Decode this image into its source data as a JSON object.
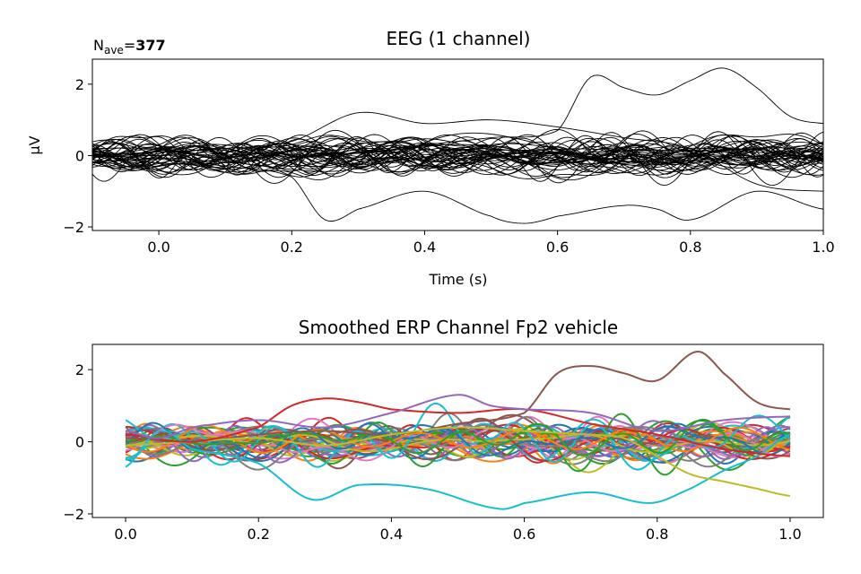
{
  "chart_data": [
    {
      "type": "line",
      "title": "EEG (1 channel)",
      "annotation_prefix": "N",
      "annotation_sub": "ave",
      "annotation_suffix": "=",
      "annotation_value": "377",
      "xlabel": "Time (s)",
      "ylabel": "µV",
      "xlim": [
        -0.1,
        1.0
      ],
      "ylim": [
        -2.1,
        2.7
      ],
      "xticks": [
        0.0,
        0.2,
        0.4,
        0.6,
        0.8,
        1.0
      ],
      "xtick_labels": [
        "0.0",
        "0.2",
        "0.4",
        "0.6",
        "0.8",
        "1.0"
      ],
      "yticks": [
        -2,
        0,
        2
      ],
      "ytick_labels": [
        "−2",
        "0",
        "2"
      ],
      "grid": false,
      "line_color": "#000000",
      "series_count": 48,
      "extreme_series": [
        {
          "x": [
            -0.1,
            0.0,
            0.1,
            0.2,
            0.3,
            0.4,
            0.5,
            0.6,
            0.65,
            0.7,
            0.75,
            0.8,
            0.85,
            0.9,
            0.95,
            1.0
          ],
          "y": [
            0.1,
            0.0,
            0.2,
            -0.3,
            0.1,
            0.3,
            0.5,
            0.7,
            2.2,
            1.9,
            1.7,
            2.1,
            2.45,
            1.9,
            1.1,
            0.9
          ]
        },
        {
          "x": [
            -0.1,
            0.0,
            0.1,
            0.2,
            0.25,
            0.3,
            0.4,
            0.5,
            0.55,
            0.6,
            0.7,
            0.75,
            0.8,
            0.9,
            1.0
          ],
          "y": [
            0.0,
            -0.1,
            -0.3,
            -0.6,
            -1.8,
            -1.5,
            -1.0,
            -1.7,
            -1.9,
            -1.7,
            -1.4,
            -1.5,
            -1.8,
            -1.0,
            -1.5
          ]
        },
        {
          "x": [
            -0.1,
            0.0,
            0.1,
            0.2,
            0.3,
            0.4,
            0.5,
            0.6,
            0.7,
            0.8,
            0.9,
            1.0
          ],
          "y": [
            0.0,
            0.1,
            0.2,
            0.4,
            1.2,
            0.9,
            1.0,
            0.8,
            0.5,
            0.2,
            -0.8,
            -1.0
          ]
        }
      ]
    },
    {
      "type": "line",
      "title": "Smoothed ERP Channel Fp2 vehicle",
      "xlabel": "",
      "ylabel": "",
      "xlim": [
        -0.05,
        1.05
      ],
      "ylim": [
        -2.1,
        2.7
      ],
      "xticks": [
        0.0,
        0.2,
        0.4,
        0.6,
        0.8,
        1.0
      ],
      "xtick_labels": [
        "0.0",
        "0.2",
        "0.4",
        "0.6",
        "0.8",
        "1.0"
      ],
      "yticks": [
        -2,
        0,
        2
      ],
      "ytick_labels": [
        "−2",
        "0",
        "2"
      ],
      "grid": false,
      "colors": [
        "#1f77b4",
        "#ff7f0e",
        "#2ca02c",
        "#d62728",
        "#9467bd",
        "#8c564b",
        "#e377c2",
        "#7f7f7f",
        "#bcbd22",
        "#17becf"
      ],
      "series_count": 48,
      "extreme_series": [
        {
          "color": "#8c564b",
          "x": [
            0.0,
            0.1,
            0.2,
            0.3,
            0.4,
            0.5,
            0.6,
            0.65,
            0.7,
            0.75,
            0.8,
            0.86,
            0.9,
            0.95,
            1.0
          ],
          "y": [
            0.1,
            0.0,
            0.2,
            0.3,
            0.2,
            0.5,
            0.8,
            1.9,
            2.1,
            1.9,
            1.7,
            2.5,
            1.9,
            1.1,
            0.9
          ]
        },
        {
          "color": "#17becf",
          "x": [
            0.0,
            0.05,
            0.1,
            0.2,
            0.28,
            0.35,
            0.45,
            0.56,
            0.6,
            0.7,
            0.79,
            0.85,
            0.9,
            0.95,
            1.0
          ],
          "y": [
            -0.7,
            0.3,
            -0.2,
            -0.6,
            -1.6,
            -1.2,
            -1.3,
            -1.85,
            -1.7,
            -1.4,
            -1.7,
            -1.3,
            -0.8,
            -0.4,
            0.2
          ]
        },
        {
          "color": "#bcbd22",
          "x": [
            0.0,
            0.1,
            0.2,
            0.3,
            0.4,
            0.5,
            0.6,
            0.7,
            0.75,
            0.8,
            0.85,
            0.9,
            0.95,
            1.0
          ],
          "y": [
            -0.1,
            0.0,
            0.1,
            -0.1,
            0.2,
            0.4,
            0.3,
            0.2,
            0.1,
            -0.4,
            -0.9,
            -1.1,
            -1.3,
            -1.5
          ]
        },
        {
          "color": "#d62728",
          "x": [
            0.0,
            0.1,
            0.2,
            0.25,
            0.3,
            0.35,
            0.4,
            0.5,
            0.6,
            0.7,
            0.8,
            0.9,
            1.0
          ],
          "y": [
            0.2,
            0.0,
            0.4,
            1.0,
            1.2,
            1.1,
            0.9,
            0.8,
            0.9,
            0.5,
            0.2,
            -0.2,
            -0.4
          ]
        },
        {
          "color": "#9467bd",
          "x": [
            0.0,
            0.05,
            0.1,
            0.2,
            0.3,
            0.4,
            0.5,
            0.55,
            0.6,
            0.7,
            0.8,
            0.9,
            1.0
          ],
          "y": [
            0.3,
            0.1,
            0.4,
            0.6,
            0.4,
            0.8,
            1.3,
            1.0,
            0.9,
            0.8,
            0.3,
            0.6,
            0.7
          ]
        }
      ]
    }
  ]
}
